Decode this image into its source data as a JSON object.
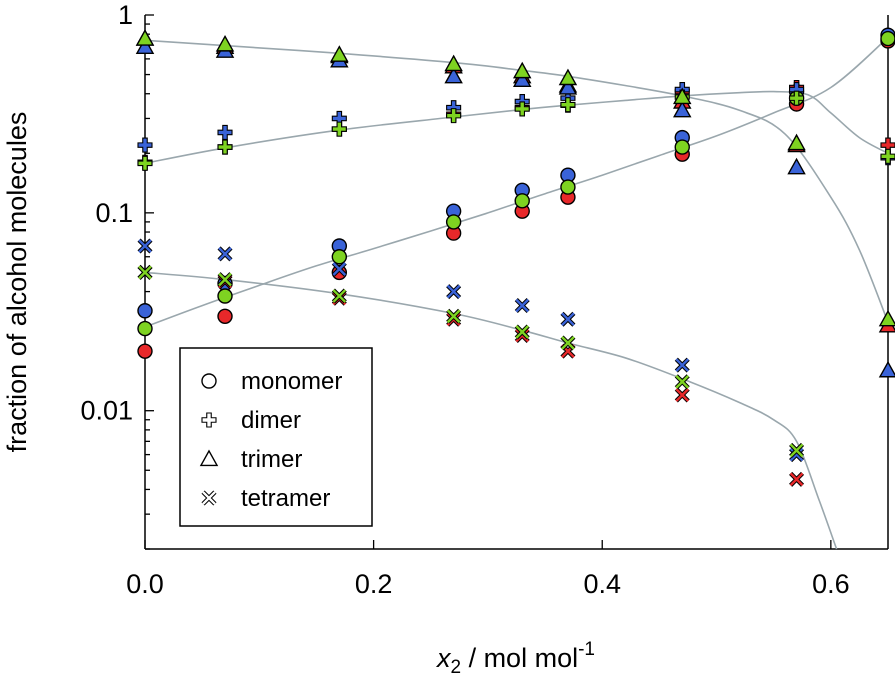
{
  "chart_data": {
    "type": "scatter",
    "xlabel_var": "x",
    "xlabel_sub": "2",
    "xlabel_unit": " / mol mol",
    "xlabel_sup": "-1",
    "ylabel": "fraction of alcohol molecules",
    "xlim": [
      0,
      0.65
    ],
    "ylim": [
      0.002,
      1
    ],
    "yscale": "log",
    "grid": false,
    "legend_position": "bottom-left",
    "xticks": [
      {
        "v": 0.0,
        "label": "0.0"
      },
      {
        "v": 0.2,
        "label": "0.2"
      },
      {
        "v": 0.4,
        "label": "0.4"
      },
      {
        "v": 0.6,
        "label": "0.6"
      }
    ],
    "yticks": [
      {
        "v": 1,
        "label": "1"
      },
      {
        "v": 0.1,
        "label": "0.1"
      },
      {
        "v": 0.01,
        "label": "0.01"
      }
    ],
    "colors": {
      "red": "#e8282a",
      "green": "#7ed321",
      "blue": "#3a63d8",
      "curve": "#9aa7ad"
    },
    "x": [
      0.0,
      0.07,
      0.17,
      0.27,
      0.33,
      0.37,
      0.47,
      0.57,
      0.65
    ],
    "series": [
      {
        "name": "monomer",
        "marker": "circle",
        "values": {
          "red": [
            0.02,
            0.03,
            0.05,
            0.079,
            0.102,
            0.12,
            0.198,
            0.355,
            0.74
          ],
          "blue": [
            0.032,
            0.044,
            0.068,
            0.102,
            0.13,
            0.155,
            0.24,
            0.41,
            0.79
          ],
          "green": [
            0.026,
            0.038,
            0.06,
            0.09,
            0.115,
            0.135,
            0.215,
            0.38,
            0.76
          ]
        },
        "fit": [
          [
            0,
            0.0265
          ],
          [
            0.05,
            0.034
          ],
          [
            0.1,
            0.043
          ],
          [
            0.15,
            0.054
          ],
          [
            0.2,
            0.066
          ],
          [
            0.25,
            0.081
          ],
          [
            0.3,
            0.1
          ],
          [
            0.35,
            0.125
          ],
          [
            0.4,
            0.155
          ],
          [
            0.45,
            0.195
          ],
          [
            0.5,
            0.245
          ],
          [
            0.55,
            0.32
          ],
          [
            0.6,
            0.43
          ],
          [
            0.65,
            0.77
          ]
        ]
      },
      {
        "name": "dimer",
        "marker": "plus",
        "values": {
          "red": [
            0.18,
            0.215,
            0.265,
            0.315,
            0.34,
            0.35,
            0.41,
            0.43,
            0.22
          ],
          "blue": [
            0.22,
            0.255,
            0.3,
            0.34,
            0.365,
            0.38,
            0.42,
            0.42,
            0.19
          ],
          "green": [
            0.178,
            0.215,
            0.265,
            0.31,
            0.335,
            0.352,
            0.385,
            0.38,
            0.193
          ]
        },
        "fit": [
          [
            0,
            0.178
          ],
          [
            0.07,
            0.213
          ],
          [
            0.17,
            0.262
          ],
          [
            0.27,
            0.305
          ],
          [
            0.33,
            0.333
          ],
          [
            0.37,
            0.35
          ],
          [
            0.42,
            0.37
          ],
          [
            0.47,
            0.39
          ],
          [
            0.52,
            0.405
          ],
          [
            0.55,
            0.41
          ],
          [
            0.58,
            0.395
          ],
          [
            0.6,
            0.32
          ],
          [
            0.625,
            0.24
          ],
          [
            0.65,
            0.2
          ]
        ]
      },
      {
        "name": "trimer",
        "marker": "triangle",
        "values": {
          "red": [
            0.76,
            0.69,
            0.62,
            0.55,
            0.49,
            0.44,
            0.365,
            0.22,
            0.027
          ],
          "blue": [
            0.69,
            0.66,
            0.59,
            0.49,
            0.47,
            0.43,
            0.33,
            0.17,
            0.016
          ],
          "green": [
            0.76,
            0.71,
            0.63,
            0.565,
            0.52,
            0.48,
            0.385,
            0.225,
            0.029
          ]
        },
        "fit": [
          [
            0,
            0.745
          ],
          [
            0.07,
            0.7
          ],
          [
            0.17,
            0.64
          ],
          [
            0.27,
            0.575
          ],
          [
            0.33,
            0.525
          ],
          [
            0.37,
            0.49
          ],
          [
            0.42,
            0.44
          ],
          [
            0.47,
            0.39
          ],
          [
            0.52,
            0.33
          ],
          [
            0.56,
            0.25
          ],
          [
            0.6,
            0.12
          ],
          [
            0.625,
            0.065
          ],
          [
            0.65,
            0.028
          ]
        ]
      },
      {
        "name": "tetramer",
        "marker": "cross",
        "values": {
          "red": [
            0.05,
            0.045,
            0.037,
            0.029,
            0.024,
            0.02,
            0.012,
            0.0045,
            null
          ],
          "blue": [
            0.068,
            0.062,
            0.052,
            0.04,
            0.034,
            0.029,
            0.017,
            0.006,
            null
          ],
          "green": [
            0.05,
            0.046,
            0.038,
            0.03,
            0.025,
            0.022,
            0.014,
            0.0063,
            null
          ]
        },
        "fit": [
          [
            0,
            0.05
          ],
          [
            0.07,
            0.046
          ],
          [
            0.17,
            0.039
          ],
          [
            0.27,
            0.031
          ],
          [
            0.33,
            0.0255
          ],
          [
            0.37,
            0.022
          ],
          [
            0.42,
            0.0185
          ],
          [
            0.47,
            0.0145
          ],
          [
            0.52,
            0.011
          ],
          [
            0.55,
            0.009
          ],
          [
            0.57,
            0.007
          ],
          [
            0.59,
            0.0035
          ],
          [
            0.605,
            0.002
          ]
        ]
      }
    ]
  }
}
